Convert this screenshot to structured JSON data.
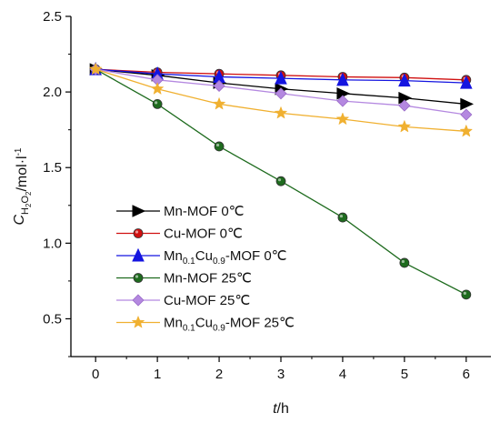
{
  "chart_data": {
    "type": "line",
    "title": "",
    "xlabel": {
      "symbol": "t",
      "unit": "/h"
    },
    "ylabel": {
      "symbol": "C",
      "subscript": "H",
      "subsub": "2",
      "subscript2": "O",
      "subsub2": "2",
      "unit": "/mol·l",
      "superscript": "-1"
    },
    "x": [
      0,
      1,
      2,
      3,
      4,
      5,
      6
    ],
    "xlim": [
      -0.4,
      6.4
    ],
    "ylim": [
      0.25,
      2.5
    ],
    "xticks": [
      "0",
      "1",
      "2",
      "3",
      "4",
      "5",
      "6"
    ],
    "yticks": [
      {
        "value": 0.5,
        "label": "0.5"
      },
      {
        "value": 1.0,
        "label": "1.0"
      },
      {
        "value": 1.5,
        "label": "1.5"
      },
      {
        "value": 2.0,
        "label": "2.0"
      },
      {
        "value": 2.5,
        "label": "2.5"
      }
    ],
    "grid": false,
    "legend_position": "bottom-left",
    "series": [
      {
        "name": "Mn-MOF 0℃",
        "label_parts": [
          "Mn-MOF 0℃"
        ],
        "color": "#000000",
        "marker": "triangle-right",
        "values": [
          2.15,
          2.11,
          2.06,
          2.02,
          1.99,
          1.96,
          1.92
        ]
      },
      {
        "name": "Cu-MOF 0℃",
        "label_parts": [
          "Cu-MOF 0℃"
        ],
        "color": "#d01010",
        "marker": "circle",
        "values": [
          2.15,
          2.13,
          2.12,
          2.11,
          2.1,
          2.095,
          2.08
        ]
      },
      {
        "name": "Mn0.1Cu0.9-MOF 0℃",
        "label_parts": [
          "Mn",
          "0.1",
          "Cu",
          "0.9",
          "-MOF 0℃"
        ],
        "color": "#1414e0",
        "marker": "triangle-up",
        "values": [
          2.15,
          2.12,
          2.1,
          2.09,
          2.08,
          2.075,
          2.06
        ]
      },
      {
        "name": "Mn-MOF 25℃",
        "label_parts": [
          "Mn-MOF 25℃"
        ],
        "color": "#1e6b1e",
        "marker": "circle",
        "values": [
          2.15,
          1.92,
          1.64,
          1.41,
          1.17,
          0.87,
          0.66
        ]
      },
      {
        "name": "Cu-MOF 25℃",
        "label_parts": [
          "Cu-MOF 25℃"
        ],
        "color": "#b488e0",
        "marker": "diamond",
        "values": [
          2.15,
          2.08,
          2.04,
          1.99,
          1.94,
          1.91,
          1.85
        ]
      },
      {
        "name": "Mn0.1Cu0.9-MOF 25℃",
        "label_parts": [
          "Mn",
          "0.1",
          "Cu",
          "0.9",
          "-MOF 25℃"
        ],
        "color": "#f0b030",
        "marker": "star",
        "values": [
          2.15,
          2.02,
          1.92,
          1.86,
          1.82,
          1.77,
          1.74
        ]
      }
    ]
  }
}
